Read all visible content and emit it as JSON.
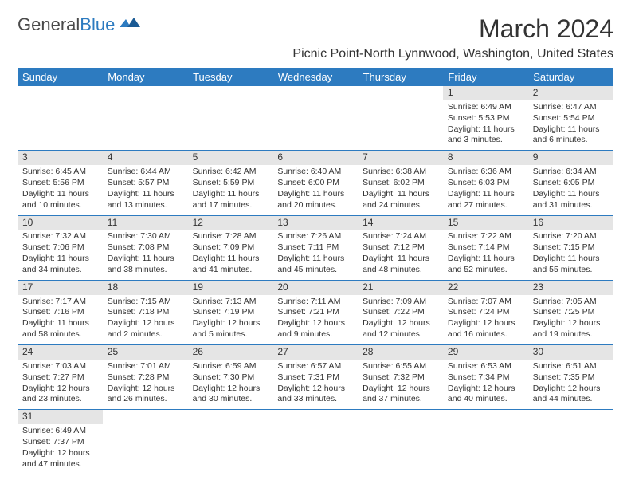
{
  "logo": {
    "general": "General",
    "blue": "Blue"
  },
  "title": "March 2024",
  "location": "Picnic Point-North Lynnwood, Washington, United States",
  "colors": {
    "header_bg": "#2d7bc0",
    "header_text": "#ffffff",
    "daynum_bg": "#e5e5e5",
    "border": "#2d7bc0",
    "text": "#333333"
  },
  "weekdays": [
    "Sunday",
    "Monday",
    "Tuesday",
    "Wednesday",
    "Thursday",
    "Friday",
    "Saturday"
  ],
  "weeks": [
    [
      {
        "day": "",
        "sunrise": "",
        "sunset": "",
        "daylight": ""
      },
      {
        "day": "",
        "sunrise": "",
        "sunset": "",
        "daylight": ""
      },
      {
        "day": "",
        "sunrise": "",
        "sunset": "",
        "daylight": ""
      },
      {
        "day": "",
        "sunrise": "",
        "sunset": "",
        "daylight": ""
      },
      {
        "day": "",
        "sunrise": "",
        "sunset": "",
        "daylight": ""
      },
      {
        "day": "1",
        "sunrise": "Sunrise: 6:49 AM",
        "sunset": "Sunset: 5:53 PM",
        "daylight": "Daylight: 11 hours and 3 minutes."
      },
      {
        "day": "2",
        "sunrise": "Sunrise: 6:47 AM",
        "sunset": "Sunset: 5:54 PM",
        "daylight": "Daylight: 11 hours and 6 minutes."
      }
    ],
    [
      {
        "day": "3",
        "sunrise": "Sunrise: 6:45 AM",
        "sunset": "Sunset: 5:56 PM",
        "daylight": "Daylight: 11 hours and 10 minutes."
      },
      {
        "day": "4",
        "sunrise": "Sunrise: 6:44 AM",
        "sunset": "Sunset: 5:57 PM",
        "daylight": "Daylight: 11 hours and 13 minutes."
      },
      {
        "day": "5",
        "sunrise": "Sunrise: 6:42 AM",
        "sunset": "Sunset: 5:59 PM",
        "daylight": "Daylight: 11 hours and 17 minutes."
      },
      {
        "day": "6",
        "sunrise": "Sunrise: 6:40 AM",
        "sunset": "Sunset: 6:00 PM",
        "daylight": "Daylight: 11 hours and 20 minutes."
      },
      {
        "day": "7",
        "sunrise": "Sunrise: 6:38 AM",
        "sunset": "Sunset: 6:02 PM",
        "daylight": "Daylight: 11 hours and 24 minutes."
      },
      {
        "day": "8",
        "sunrise": "Sunrise: 6:36 AM",
        "sunset": "Sunset: 6:03 PM",
        "daylight": "Daylight: 11 hours and 27 minutes."
      },
      {
        "day": "9",
        "sunrise": "Sunrise: 6:34 AM",
        "sunset": "Sunset: 6:05 PM",
        "daylight": "Daylight: 11 hours and 31 minutes."
      }
    ],
    [
      {
        "day": "10",
        "sunrise": "Sunrise: 7:32 AM",
        "sunset": "Sunset: 7:06 PM",
        "daylight": "Daylight: 11 hours and 34 minutes."
      },
      {
        "day": "11",
        "sunrise": "Sunrise: 7:30 AM",
        "sunset": "Sunset: 7:08 PM",
        "daylight": "Daylight: 11 hours and 38 minutes."
      },
      {
        "day": "12",
        "sunrise": "Sunrise: 7:28 AM",
        "sunset": "Sunset: 7:09 PM",
        "daylight": "Daylight: 11 hours and 41 minutes."
      },
      {
        "day": "13",
        "sunrise": "Sunrise: 7:26 AM",
        "sunset": "Sunset: 7:11 PM",
        "daylight": "Daylight: 11 hours and 45 minutes."
      },
      {
        "day": "14",
        "sunrise": "Sunrise: 7:24 AM",
        "sunset": "Sunset: 7:12 PM",
        "daylight": "Daylight: 11 hours and 48 minutes."
      },
      {
        "day": "15",
        "sunrise": "Sunrise: 7:22 AM",
        "sunset": "Sunset: 7:14 PM",
        "daylight": "Daylight: 11 hours and 52 minutes."
      },
      {
        "day": "16",
        "sunrise": "Sunrise: 7:20 AM",
        "sunset": "Sunset: 7:15 PM",
        "daylight": "Daylight: 11 hours and 55 minutes."
      }
    ],
    [
      {
        "day": "17",
        "sunrise": "Sunrise: 7:17 AM",
        "sunset": "Sunset: 7:16 PM",
        "daylight": "Daylight: 11 hours and 58 minutes."
      },
      {
        "day": "18",
        "sunrise": "Sunrise: 7:15 AM",
        "sunset": "Sunset: 7:18 PM",
        "daylight": "Daylight: 12 hours and 2 minutes."
      },
      {
        "day": "19",
        "sunrise": "Sunrise: 7:13 AM",
        "sunset": "Sunset: 7:19 PM",
        "daylight": "Daylight: 12 hours and 5 minutes."
      },
      {
        "day": "20",
        "sunrise": "Sunrise: 7:11 AM",
        "sunset": "Sunset: 7:21 PM",
        "daylight": "Daylight: 12 hours and 9 minutes."
      },
      {
        "day": "21",
        "sunrise": "Sunrise: 7:09 AM",
        "sunset": "Sunset: 7:22 PM",
        "daylight": "Daylight: 12 hours and 12 minutes."
      },
      {
        "day": "22",
        "sunrise": "Sunrise: 7:07 AM",
        "sunset": "Sunset: 7:24 PM",
        "daylight": "Daylight: 12 hours and 16 minutes."
      },
      {
        "day": "23",
        "sunrise": "Sunrise: 7:05 AM",
        "sunset": "Sunset: 7:25 PM",
        "daylight": "Daylight: 12 hours and 19 minutes."
      }
    ],
    [
      {
        "day": "24",
        "sunrise": "Sunrise: 7:03 AM",
        "sunset": "Sunset: 7:27 PM",
        "daylight": "Daylight: 12 hours and 23 minutes."
      },
      {
        "day": "25",
        "sunrise": "Sunrise: 7:01 AM",
        "sunset": "Sunset: 7:28 PM",
        "daylight": "Daylight: 12 hours and 26 minutes."
      },
      {
        "day": "26",
        "sunrise": "Sunrise: 6:59 AM",
        "sunset": "Sunset: 7:30 PM",
        "daylight": "Daylight: 12 hours and 30 minutes."
      },
      {
        "day": "27",
        "sunrise": "Sunrise: 6:57 AM",
        "sunset": "Sunset: 7:31 PM",
        "daylight": "Daylight: 12 hours and 33 minutes."
      },
      {
        "day": "28",
        "sunrise": "Sunrise: 6:55 AM",
        "sunset": "Sunset: 7:32 PM",
        "daylight": "Daylight: 12 hours and 37 minutes."
      },
      {
        "day": "29",
        "sunrise": "Sunrise: 6:53 AM",
        "sunset": "Sunset: 7:34 PM",
        "daylight": "Daylight: 12 hours and 40 minutes."
      },
      {
        "day": "30",
        "sunrise": "Sunrise: 6:51 AM",
        "sunset": "Sunset: 7:35 PM",
        "daylight": "Daylight: 12 hours and 44 minutes."
      }
    ],
    [
      {
        "day": "31",
        "sunrise": "Sunrise: 6:49 AM",
        "sunset": "Sunset: 7:37 PM",
        "daylight": "Daylight: 12 hours and 47 minutes."
      },
      {
        "day": "",
        "sunrise": "",
        "sunset": "",
        "daylight": ""
      },
      {
        "day": "",
        "sunrise": "",
        "sunset": "",
        "daylight": ""
      },
      {
        "day": "",
        "sunrise": "",
        "sunset": "",
        "daylight": ""
      },
      {
        "day": "",
        "sunrise": "",
        "sunset": "",
        "daylight": ""
      },
      {
        "day": "",
        "sunrise": "",
        "sunset": "",
        "daylight": ""
      },
      {
        "day": "",
        "sunrise": "",
        "sunset": "",
        "daylight": ""
      }
    ]
  ]
}
